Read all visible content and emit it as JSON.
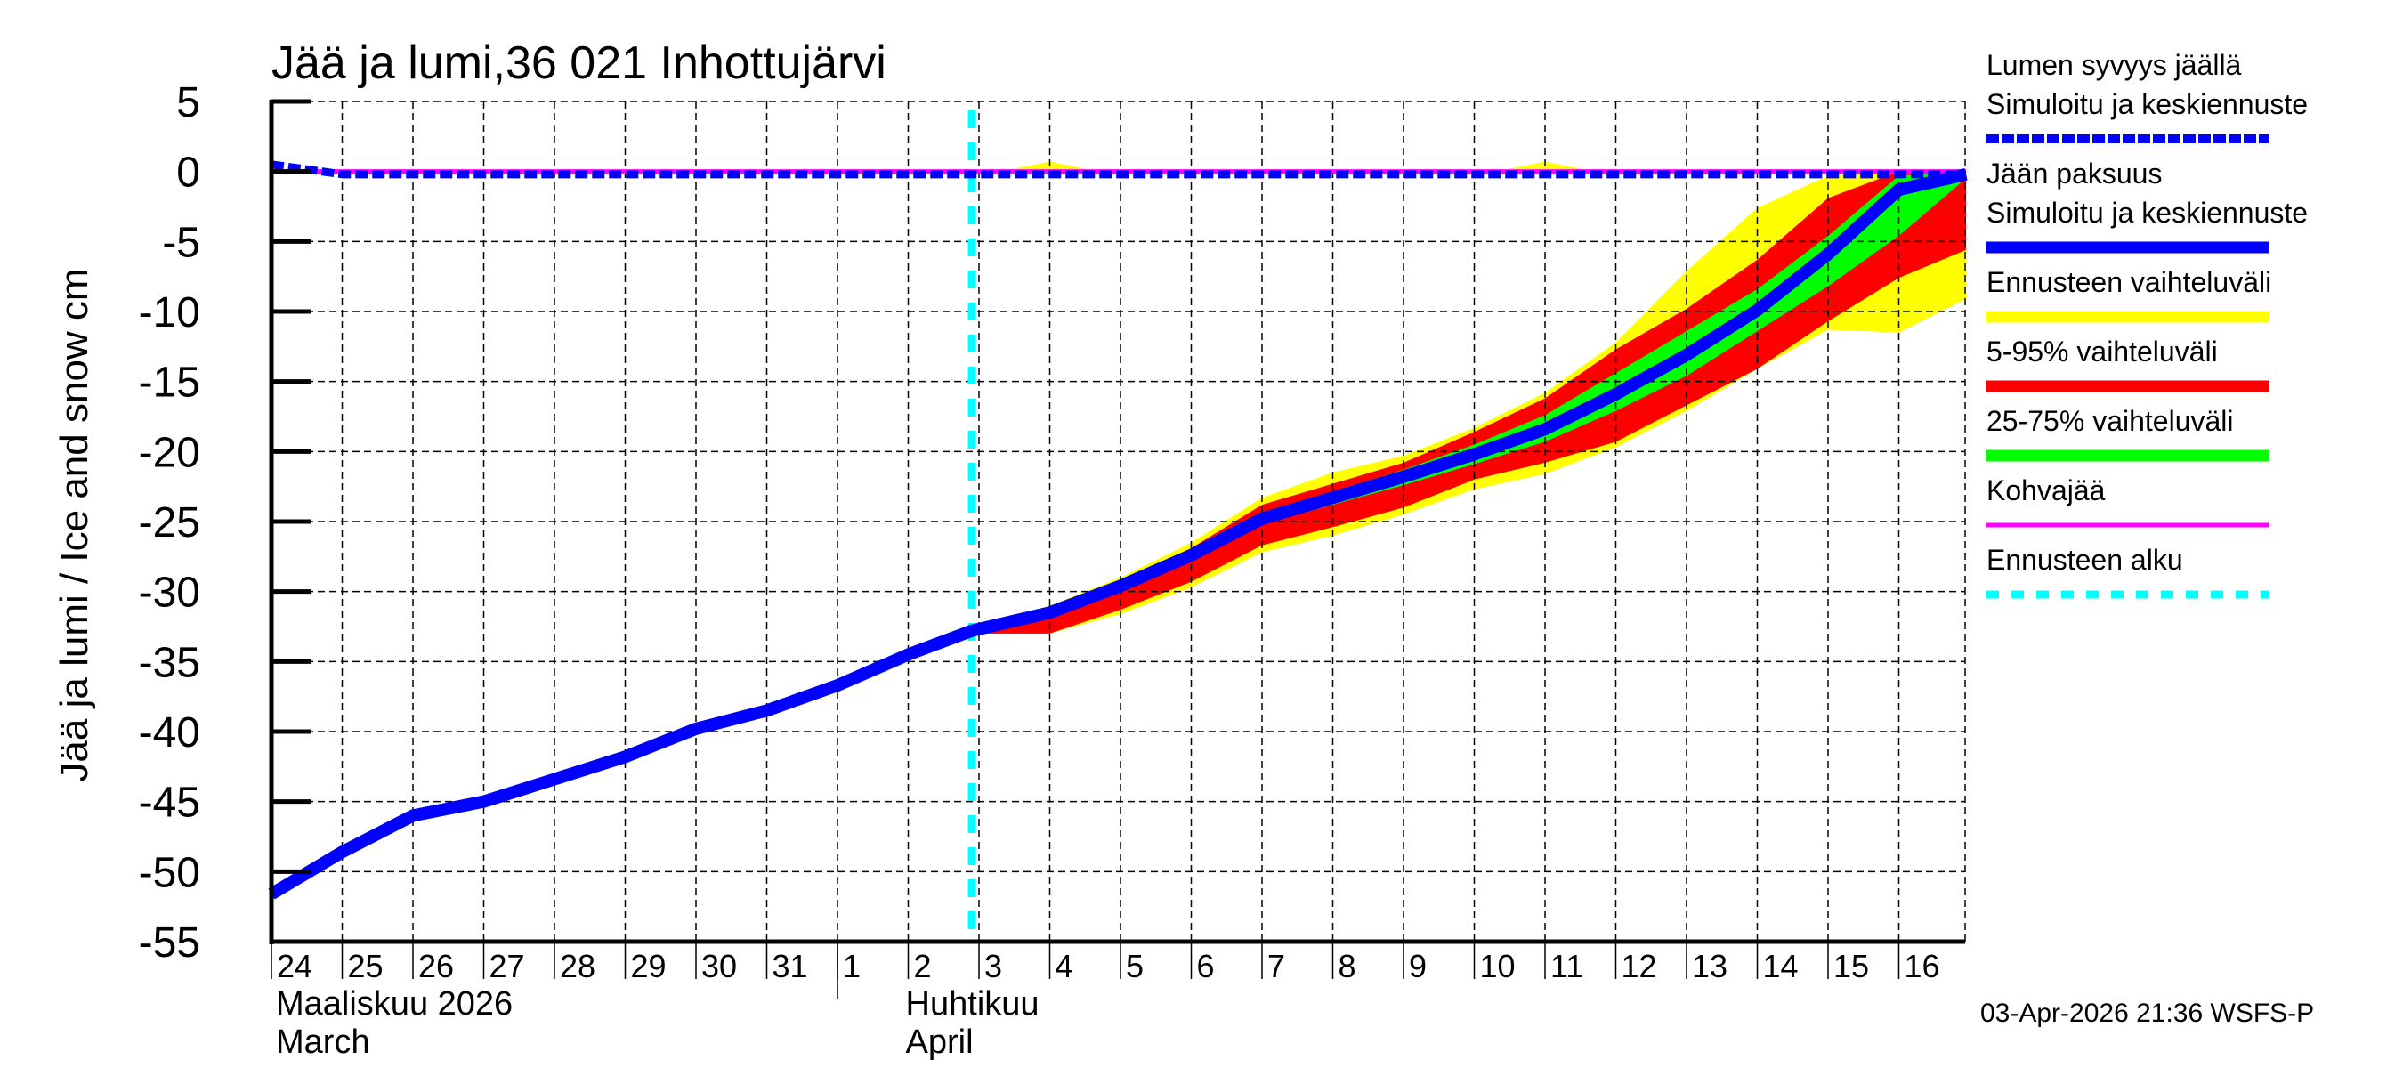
{
  "chart_data": {
    "type": "area",
    "title": "Jää ja lumi,36 021 Inhottujärvi",
    "ylabel": "Jää ja lumi / Ice and snow    cm",
    "xlabel": "",
    "ylim": [
      -55,
      5
    ],
    "yticks": [
      5,
      0,
      -5,
      -10,
      -15,
      -20,
      -25,
      -30,
      -35,
      -40,
      -45,
      -50,
      -55
    ],
    "grid": true,
    "legend_position": "right",
    "x_day_labels": [
      "24",
      "25",
      "26",
      "27",
      "28",
      "29",
      "30",
      "31",
      "1",
      "2",
      "3",
      "4",
      "5",
      "6",
      "7",
      "8",
      "9",
      "10",
      "11",
      "12",
      "13",
      "14",
      "15",
      "16"
    ],
    "month_labels": [
      {
        "line1": "Maaliskuu 2026",
        "line2": "March",
        "at_index": 0
      },
      {
        "line1": "Huhtikuu",
        "line2": "April",
        "at_index": 8.9
      }
    ],
    "forecast_start_index": 9.9,
    "x_end_index": 23.95,
    "series": [
      {
        "name": "Jään paksuus – Simuloitu ja keskiennuste",
        "color": "#0000ff",
        "style": "solid-thick",
        "x": [
          0,
          1,
          2,
          3,
          4,
          5,
          6,
          7,
          8,
          9,
          9.9,
          11,
          12,
          13,
          14,
          15,
          16,
          17,
          18,
          19,
          20,
          21,
          22,
          23,
          23.95
        ],
        "values": [
          -51.6,
          -48.6,
          -46.0,
          -45.0,
          -43.4,
          -41.8,
          -39.8,
          -38.5,
          -36.7,
          -34.5,
          -32.8,
          -31.5,
          -29.6,
          -27.4,
          -24.8,
          -23.3,
          -21.8,
          -20.2,
          -18.4,
          -15.9,
          -13.1,
          -9.9,
          -5.9,
          -1.3,
          -0.2
        ]
      },
      {
        "name": "Lumen syvyys jäällä – Simuloitu ja keskiennuste",
        "color": "#0000ff",
        "style": "dashed",
        "x": [
          0,
          1,
          23.95
        ],
        "values": [
          0.5,
          -0.2,
          -0.2
        ]
      },
      {
        "name": "Kohvajää",
        "color": "#ff00ff",
        "style": "solid",
        "x": [
          0,
          23.95
        ],
        "values": [
          0,
          0
        ]
      }
    ],
    "bands": [
      {
        "name": "Ennusteen vaihteluväli",
        "color": "#ffff00",
        "x": [
          9.9,
          11,
          12,
          13,
          14,
          15,
          16,
          17,
          18,
          19,
          20,
          21,
          22,
          23,
          23.95
        ],
        "upper": [
          -32.8,
          -31.0,
          -29.0,
          -26.5,
          -23.3,
          -21.5,
          -20.3,
          -18.3,
          -15.8,
          -12.2,
          -7.1,
          -2.6,
          -0.3,
          0,
          0
        ],
        "lower": [
          -33.0,
          -33.0,
          -31.6,
          -29.7,
          -27.2,
          -26.0,
          -24.5,
          -22.7,
          -21.6,
          -19.7,
          -17.1,
          -14.1,
          -11.3,
          -11.5,
          -9.1
        ]
      },
      {
        "name": "Ennusteen vaihteluväli (snow)",
        "color": "#ffff00",
        "x": [
          9.9,
          10.3,
          11,
          11.7,
          16.5,
          17.3,
          18,
          18.7
        ],
        "upper": [
          0,
          0,
          0.7,
          0,
          0,
          0,
          0.7,
          0
        ],
        "lower": [
          0,
          0,
          0,
          0,
          0,
          0,
          0,
          0
        ]
      },
      {
        "name": "5-95% vaihteluväli",
        "color": "#ff0000",
        "x": [
          9.9,
          11,
          12,
          13,
          14,
          15,
          16,
          17,
          18,
          19,
          20,
          21,
          22,
          23,
          23.95
        ],
        "upper": [
          -32.8,
          -31.3,
          -29.2,
          -26.9,
          -23.8,
          -22.3,
          -20.8,
          -18.6,
          -16.2,
          -12.7,
          -9.8,
          -6.3,
          -1.9,
          0,
          0
        ],
        "lower": [
          -33.0,
          -33.0,
          -31.3,
          -29.3,
          -26.7,
          -25.4,
          -24.0,
          -22.0,
          -20.8,
          -19.3,
          -16.7,
          -14.1,
          -10.7,
          -7.6,
          -5.6
        ]
      },
      {
        "name": "25-75% vaihteluväli",
        "color": "#00ff00",
        "x": [
          9.9,
          11,
          12,
          13,
          14,
          15,
          16,
          17,
          18,
          19,
          20,
          21,
          22,
          23,
          23.95
        ],
        "upper": [
          -32.6,
          -31.3,
          -29.3,
          -27.1,
          -24.5,
          -22.9,
          -21.3,
          -19.5,
          -17.4,
          -14.4,
          -11.4,
          -8.4,
          -4.6,
          -0.3,
          0
        ],
        "lower": [
          -32.9,
          -31.7,
          -29.9,
          -27.7,
          -25.2,
          -23.8,
          -22.4,
          -20.9,
          -19.3,
          -17.1,
          -14.6,
          -11.4,
          -8.2,
          -4.6,
          -0.5
        ]
      }
    ]
  },
  "legend": {
    "items": [
      {
        "line1": "Lumen syvyys jäällä",
        "line2": "Simuloitu ja keskiennuste",
        "color": "#0000ff",
        "style": "dashed"
      },
      {
        "line1": "Jään paksuus",
        "line2": "Simuloitu ja keskiennuste",
        "color": "#0000ff",
        "style": "solid"
      },
      {
        "line1": "Ennusteen vaihteluväli",
        "color": "#ffff00",
        "style": "solid"
      },
      {
        "line1": "5-95% vaihteluväli",
        "color": "#ff0000",
        "style": "solid"
      },
      {
        "line1": "25-75% vaihteluväli",
        "color": "#00ff00",
        "style": "solid"
      },
      {
        "line1": "Kohvajää",
        "color": "#ff00ff",
        "style": "thin"
      },
      {
        "line1": "Ennusteen alku",
        "color": "#00ffff",
        "style": "dotted"
      }
    ]
  },
  "footer": {
    "timestamp": "03-Apr-2026 21:36 WSFS-P"
  },
  "colors": {
    "forecast_start": "#00ffff"
  }
}
